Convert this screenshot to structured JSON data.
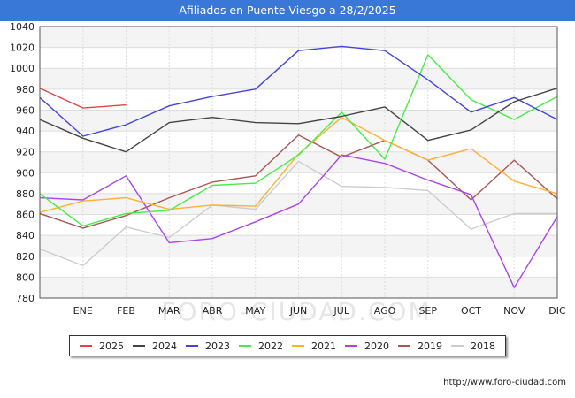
{
  "title": "Afiliados en Puente Viesgo a 28/2/2025",
  "watermark": "FORO-CIUDAD.COM",
  "footer_url": "http://www.foro-ciudad.com",
  "chart_data": {
    "type": "line",
    "title": "Afiliados en Puente Viesgo a 28/2/2025",
    "categories": [
      "",
      "ENE",
      "FEB",
      "MAR",
      "ABR",
      "MAY",
      "JUN",
      "JUL",
      "AGO",
      "SEP",
      "OCT",
      "NOV",
      "DIC"
    ],
    "ylim": [
      780,
      1040
    ],
    "yticks": [
      780,
      800,
      820,
      840,
      860,
      880,
      900,
      920,
      940,
      960,
      980,
      1000,
      1020,
      1040
    ],
    "grid": true,
    "legend_position": "bottom",
    "series": [
      {
        "name": "2025",
        "color": "#e04444",
        "values": [
          981,
          962,
          965,
          null,
          null,
          null,
          null,
          null,
          null,
          null,
          null,
          null,
          null
        ]
      },
      {
        "name": "2024",
        "color": "#444444",
        "values": [
          951,
          933,
          920,
          948,
          953,
          948,
          947,
          954,
          963,
          931,
          941,
          968,
          981
        ]
      },
      {
        "name": "2023",
        "color": "#4444dd",
        "values": [
          972,
          935,
          946,
          964,
          973,
          980,
          1017,
          1021,
          1017,
          989,
          958,
          972,
          951
        ]
      },
      {
        "name": "2022",
        "color": "#44ee44",
        "values": [
          880,
          849,
          861,
          864,
          888,
          890,
          917,
          958,
          913,
          1013,
          970,
          951,
          973
        ]
      },
      {
        "name": "2021",
        "color": "#ffb030",
        "values": [
          862,
          873,
          876,
          865,
          869,
          868,
          918,
          953,
          931,
          912,
          923,
          892,
          880
        ]
      },
      {
        "name": "2020",
        "color": "#aa44ee",
        "values": [
          876,
          874,
          897,
          833,
          837,
          853,
          870,
          917,
          909,
          893,
          879,
          790,
          858
        ]
      },
      {
        "name": "2019",
        "color": "#aa5555",
        "values": [
          861,
          847,
          859,
          876,
          891,
          897,
          936,
          915,
          931,
          912,
          874,
          912,
          875
        ]
      },
      {
        "name": "2018",
        "color": "#cccccc",
        "values": [
          827,
          811,
          848,
          838,
          869,
          865,
          911,
          887,
          886,
          883,
          846,
          861,
          861
        ]
      }
    ]
  }
}
